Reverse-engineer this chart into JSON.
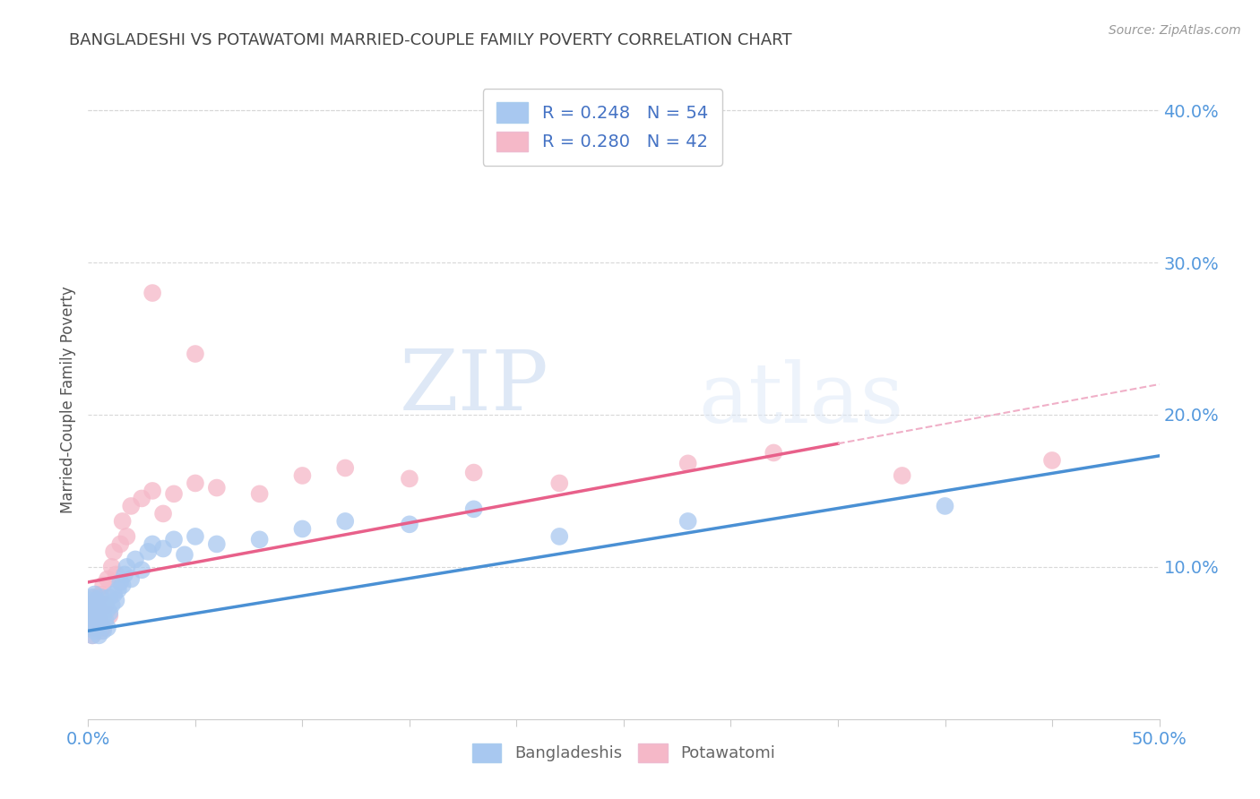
{
  "title": "BANGLADESHI VS POTAWATOMI MARRIED-COUPLE FAMILY POVERTY CORRELATION CHART",
  "source": "Source: ZipAtlas.com",
  "ylabel": "Married-Couple Family Poverty",
  "xlim": [
    0.0,
    0.5
  ],
  "ylim": [
    0.0,
    0.42
  ],
  "xticks": [
    0.0,
    0.05,
    0.1,
    0.15,
    0.2,
    0.25,
    0.3,
    0.35,
    0.4,
    0.45,
    0.5
  ],
  "yticks_right": [
    0.1,
    0.2,
    0.3,
    0.4
  ],
  "legend_blue_label": "R = 0.248   N = 54",
  "legend_pink_label": "R = 0.280   N = 42",
  "blue_color": "#a8c8f0",
  "pink_color": "#f5b8c8",
  "blue_line_color": "#4a90d4",
  "pink_line_color": "#e8608a",
  "dashed_line_color": "#f0b0c8",
  "watermark_color": "#dce8f8",
  "watermark_text": "ZIPatlas",
  "blue_intercept": 0.058,
  "blue_slope": 0.23,
  "pink_intercept": 0.09,
  "pink_slope": 0.26,
  "bangladeshi_x": [
    0.001,
    0.001,
    0.001,
    0.002,
    0.002,
    0.002,
    0.002,
    0.003,
    0.003,
    0.003,
    0.003,
    0.004,
    0.004,
    0.004,
    0.005,
    0.005,
    0.005,
    0.006,
    0.006,
    0.006,
    0.007,
    0.007,
    0.008,
    0.008,
    0.009,
    0.009,
    0.01,
    0.01,
    0.011,
    0.012,
    0.013,
    0.014,
    0.015,
    0.016,
    0.017,
    0.018,
    0.02,
    0.022,
    0.025,
    0.028,
    0.03,
    0.035,
    0.04,
    0.045,
    0.05,
    0.06,
    0.08,
    0.1,
    0.12,
    0.15,
    0.18,
    0.22,
    0.28,
    0.4
  ],
  "bangladeshi_y": [
    0.062,
    0.07,
    0.078,
    0.055,
    0.068,
    0.075,
    0.08,
    0.058,
    0.065,
    0.072,
    0.082,
    0.06,
    0.07,
    0.078,
    0.055,
    0.065,
    0.075,
    0.062,
    0.07,
    0.08,
    0.058,
    0.068,
    0.075,
    0.065,
    0.06,
    0.072,
    0.08,
    0.07,
    0.075,
    0.082,
    0.078,
    0.085,
    0.09,
    0.088,
    0.095,
    0.1,
    0.092,
    0.105,
    0.098,
    0.11,
    0.115,
    0.112,
    0.118,
    0.108,
    0.12,
    0.115,
    0.118,
    0.125,
    0.13,
    0.128,
    0.138,
    0.12,
    0.13,
    0.14
  ],
  "potawatomi_x": [
    0.001,
    0.001,
    0.002,
    0.002,
    0.003,
    0.003,
    0.004,
    0.004,
    0.005,
    0.005,
    0.006,
    0.006,
    0.007,
    0.007,
    0.008,
    0.009,
    0.01,
    0.011,
    0.012,
    0.013,
    0.015,
    0.016,
    0.018,
    0.02,
    0.025,
    0.03,
    0.035,
    0.04,
    0.05,
    0.06,
    0.08,
    0.1,
    0.12,
    0.15,
    0.18,
    0.22,
    0.28,
    0.32,
    0.38,
    0.45,
    0.03,
    0.05
  ],
  "potawatomi_y": [
    0.062,
    0.068,
    0.055,
    0.075,
    0.06,
    0.08,
    0.07,
    0.078,
    0.065,
    0.072,
    0.058,
    0.082,
    0.06,
    0.088,
    0.075,
    0.092,
    0.068,
    0.1,
    0.11,
    0.095,
    0.115,
    0.13,
    0.12,
    0.14,
    0.145,
    0.15,
    0.135,
    0.148,
    0.155,
    0.152,
    0.148,
    0.16,
    0.165,
    0.158,
    0.162,
    0.155,
    0.168,
    0.175,
    0.16,
    0.17,
    0.28,
    0.24
  ],
  "background_color": "#ffffff",
  "grid_color": "#d8d8d8",
  "title_color": "#444444",
  "axis_label_color": "#555555",
  "tick_label_color": "#5599dd"
}
